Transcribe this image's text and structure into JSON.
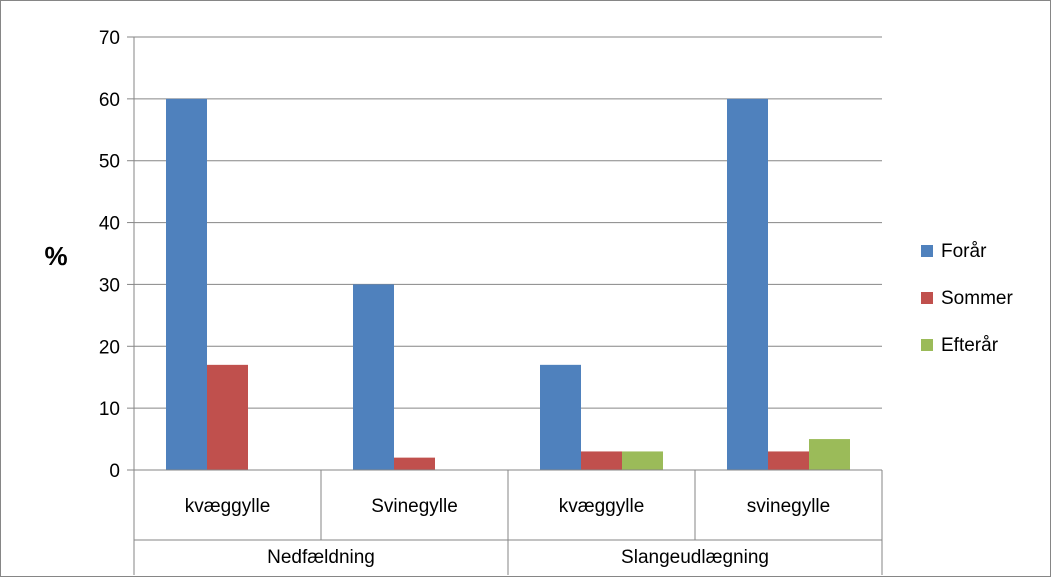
{
  "chart_data": {
    "type": "bar",
    "ylabel": "%",
    "ylim": [
      0,
      70
    ],
    "yticks": [
      0,
      10,
      20,
      30,
      40,
      50,
      60,
      70
    ],
    "grid": true,
    "legend_position": "right",
    "categories": [
      "kvæggylle",
      "Svinegylle",
      "kvæggylle",
      "svinegylle"
    ],
    "groups": [
      {
        "label": "Nedfældning",
        "span": 2
      },
      {
        "label": "Slangeudlægning",
        "span": 2
      }
    ],
    "series": [
      {
        "name": "Forår",
        "color": "#4F81BD",
        "values": [
          60,
          30,
          17,
          60
        ]
      },
      {
        "name": "Sommer",
        "color": "#C0504D",
        "values": [
          17,
          2,
          3,
          3
        ]
      },
      {
        "name": "Efterår",
        "color": "#9BBB59",
        "values": [
          null,
          null,
          3,
          5
        ]
      }
    ]
  }
}
